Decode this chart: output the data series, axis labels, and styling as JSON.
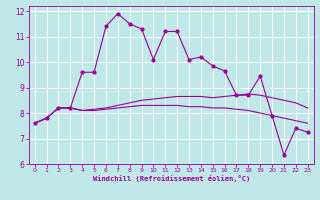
{
  "xlabel": "Windchill (Refroidissement éolien,°C)",
  "bg_color": "#c0e8e8",
  "line_color": "#990099",
  "grid_color": "#ffffff",
  "xlim": [
    -0.5,
    23.5
  ],
  "ylim": [
    6,
    12.2
  ],
  "yticks": [
    6,
    7,
    8,
    9,
    10,
    11,
    12
  ],
  "xticks": [
    0,
    1,
    2,
    3,
    4,
    5,
    6,
    7,
    8,
    9,
    10,
    11,
    12,
    13,
    14,
    15,
    16,
    17,
    18,
    19,
    20,
    21,
    22,
    23
  ],
  "series1_x": [
    0,
    1,
    2,
    3,
    4,
    5,
    6,
    7,
    8,
    9,
    10,
    11,
    12,
    13,
    14,
    15,
    16,
    17,
    18,
    19,
    20,
    21,
    22,
    23
  ],
  "series1_y": [
    7.6,
    7.8,
    8.2,
    8.2,
    8.1,
    8.1,
    8.15,
    8.2,
    8.25,
    8.3,
    8.3,
    8.3,
    8.3,
    8.25,
    8.25,
    8.2,
    8.2,
    8.15,
    8.1,
    8.0,
    7.9,
    7.8,
    7.7,
    7.6
  ],
  "series2_x": [
    0,
    1,
    2,
    3,
    4,
    5,
    6,
    7,
    8,
    9,
    10,
    11,
    12,
    13,
    14,
    15,
    16,
    17,
    18,
    19,
    20,
    21,
    22,
    23
  ],
  "series2_y": [
    7.6,
    7.8,
    8.2,
    8.2,
    8.1,
    8.15,
    8.2,
    8.3,
    8.4,
    8.5,
    8.55,
    8.6,
    8.65,
    8.65,
    8.65,
    8.6,
    8.65,
    8.7,
    8.75,
    8.7,
    8.6,
    8.5,
    8.4,
    8.2
  ],
  "series3_x": [
    0,
    1,
    2,
    3,
    4,
    5,
    6,
    7,
    8,
    9,
    10,
    11,
    12,
    13,
    14,
    15,
    16,
    17,
    18,
    19,
    20,
    21,
    22,
    23
  ],
  "series3_y": [
    7.6,
    7.8,
    8.2,
    8.2,
    9.6,
    9.6,
    11.4,
    11.9,
    11.5,
    11.3,
    10.1,
    11.2,
    11.2,
    10.1,
    10.2,
    9.85,
    9.65,
    8.7,
    8.7,
    9.45,
    7.9,
    6.35,
    7.4,
    7.25
  ]
}
